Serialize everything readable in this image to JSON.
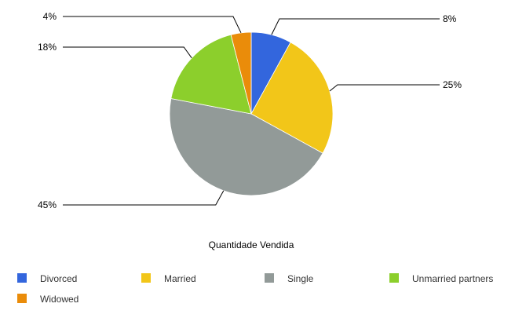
{
  "chart_data": {
    "type": "pie",
    "title": "",
    "xlabel": "Quantidade Vendida",
    "legend_position": "bottom",
    "categories": [
      "Divorced",
      "Married",
      "Single",
      "Unmarried partners",
      "Widowed"
    ],
    "values": [
      8,
      25,
      45,
      18,
      4
    ],
    "value_labels": [
      "8%",
      "25%",
      "45%",
      "18%",
      "4%"
    ],
    "colors": [
      "#3366dd",
      "#f2c619",
      "#929a98",
      "#8ccf2c",
      "#ea8c0a"
    ]
  }
}
